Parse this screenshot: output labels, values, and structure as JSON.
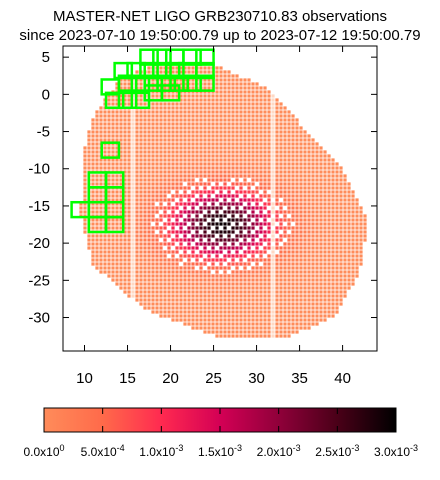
{
  "title_line1": "MASTER-NET LIGO GRB230710.83 observations",
  "title_line2": "since 2023-07-10 19:50:00.79 up to 2023-07-12 19:50:00.79",
  "chart_data": {
    "type": "heatmap",
    "x_ticks": [
      10,
      15,
      20,
      25,
      30,
      35,
      40
    ],
    "y_ticks": [
      5,
      0,
      -5,
      -10,
      -15,
      -20,
      -25,
      -30
    ],
    "xlim": [
      7.5,
      44
    ],
    "ylim": [
      -34.5,
      6.5
    ],
    "probability_map": {
      "peak_location": [
        26,
        -17.5
      ],
      "peak_value": 0.003
    },
    "observed_fields": [
      [
        17.5,
        5.0
      ],
      [
        19.0,
        5.0
      ],
      [
        20.5,
        5.0
      ],
      [
        22.5,
        5.0
      ],
      [
        24.0,
        5.0
      ],
      [
        14.5,
        3.2
      ],
      [
        16.0,
        3.2
      ],
      [
        17.5,
        3.2
      ],
      [
        19.0,
        3.2
      ],
      [
        20.5,
        3.2
      ],
      [
        22.0,
        3.2
      ],
      [
        24.0,
        3.2
      ],
      [
        15.0,
        1.5
      ],
      [
        16.5,
        1.5
      ],
      [
        18.0,
        1.5
      ],
      [
        19.5,
        1.5
      ],
      [
        21.0,
        1.5
      ],
      [
        22.5,
        1.5
      ],
      [
        24.0,
        1.5
      ],
      [
        13.0,
        1.0
      ],
      [
        18.0,
        0.2
      ],
      [
        20.0,
        0.2
      ],
      [
        13.5,
        -0.8
      ],
      [
        15.0,
        -0.8
      ],
      [
        16.5,
        -0.8
      ],
      [
        13.0,
        -7.5
      ],
      [
        11.5,
        -11.5
      ],
      [
        13.5,
        -11.5
      ],
      [
        11.5,
        -13.5
      ],
      [
        13.5,
        -13.5
      ],
      [
        9.5,
        -15.5
      ],
      [
        11.5,
        -15.5
      ],
      [
        13.5,
        -15.5
      ],
      [
        11.5,
        -17.5
      ],
      [
        13.5,
        -17.5
      ]
    ],
    "field_color": "#00ff00",
    "colorbar": {
      "colors": [
        "#ff8c5a",
        "#ff6a4a",
        "#ff2a50",
        "#d40055",
        "#90003a",
        "#4a0018",
        "#000000"
      ],
      "tick_labels": [
        "0.0x10",
        "5.0x10",
        "1.0x10",
        "1.5x10",
        "2.0x10",
        "2.5x10",
        "3.0x10"
      ],
      "tick_exponents": [
        "0",
        "-4",
        "-3",
        "-3",
        "-3",
        "-3",
        "-3"
      ]
    }
  }
}
